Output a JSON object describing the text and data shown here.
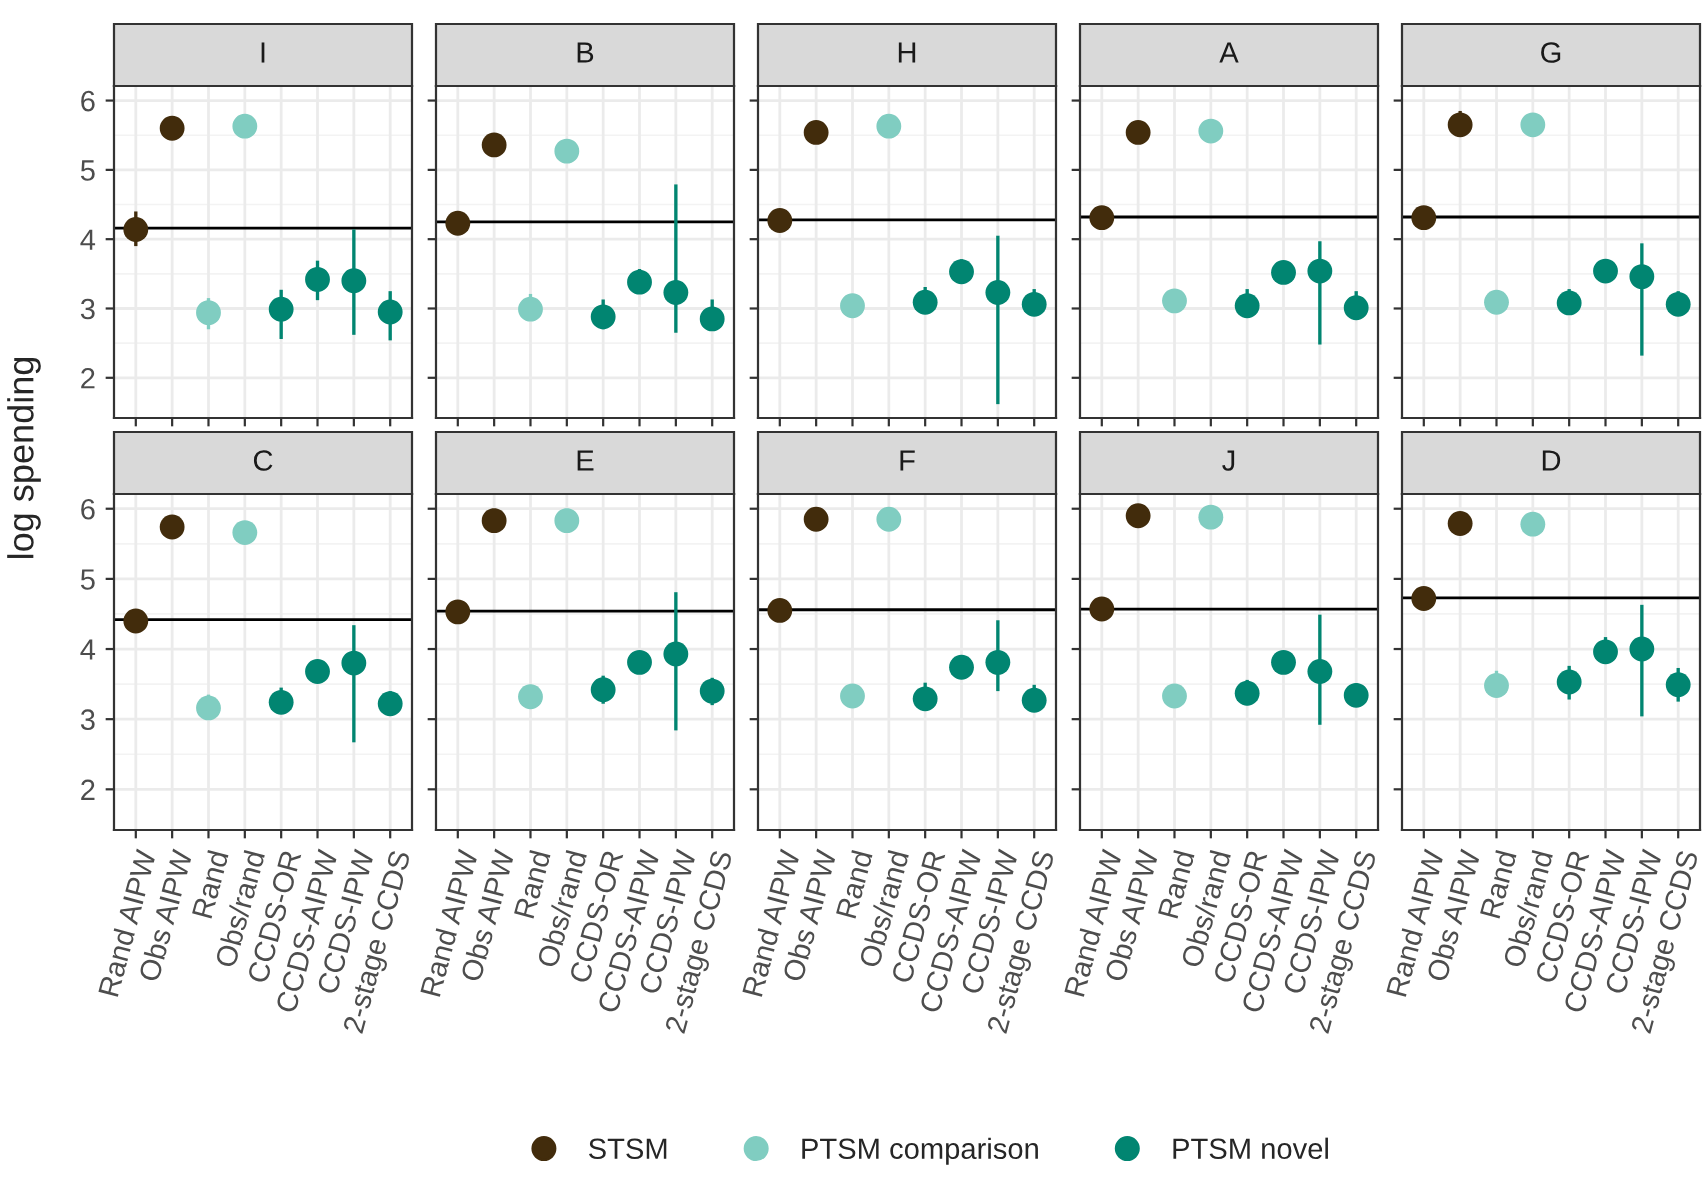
{
  "chart_data": [
    {
      "type": "scatter",
      "title": "I",
      "ylabel": "log spending",
      "categories": [
        "Rand AIPW",
        "Obs AIPW",
        "Rand",
        "Obs/rand",
        "CCDS-OR",
        "CCDS-AIPW",
        "CCDS-IPW",
        "2-stage CCDS"
      ],
      "ylim": [
        1.42,
        6.21
      ],
      "yticks": [
        2,
        3,
        4,
        5,
        6
      ],
      "grid": true,
      "marker": "circle",
      "tick_labels": "y",
      "legend": "bottom",
      "ref_lines": [
        {
          "axis": "y",
          "value": 4.16,
          "color": "#000000"
        }
      ],
      "series": [
        {
          "name": "STSM",
          "color": "#422c0c",
          "values": [
            4.14,
            5.6,
            null,
            null,
            null,
            null,
            null,
            null
          ],
          "errors": [
            [
              3.9,
              4.4
            ],
            null,
            null,
            null,
            null,
            null,
            null,
            null
          ]
        },
        {
          "name": "PTSM comparison",
          "color": "#80cdc1",
          "values": [
            null,
            null,
            2.94,
            5.63,
            null,
            null,
            null,
            null
          ],
          "errors": [
            null,
            null,
            [
              2.7,
              3.15
            ],
            null,
            null,
            null,
            null,
            null
          ]
        },
        {
          "name": "PTSM novel",
          "color": "#018571",
          "values": [
            null,
            null,
            null,
            null,
            2.99,
            3.42,
            3.4,
            2.95
          ],
          "errors": [
            null,
            null,
            null,
            null,
            [
              2.56,
              3.27
            ],
            [
              3.12,
              3.69
            ],
            [
              2.62,
              4.14
            ],
            [
              2.54,
              3.25
            ]
          ]
        }
      ]
    },
    {
      "type": "scatter",
      "title": "B",
      "categories": [
        "Rand AIPW",
        "Obs AIPW",
        "Rand",
        "Obs/rand",
        "CCDS-OR",
        "CCDS-AIPW",
        "CCDS-IPW",
        "2-stage CCDS"
      ],
      "ylim": [
        1.42,
        6.21
      ],
      "yticks": [
        2,
        3,
        4,
        5,
        6
      ],
      "grid": true,
      "marker": "circle",
      "tick_labels": false,
      "ref_lines": [
        {
          "axis": "y",
          "value": 4.25,
          "color": "#000000"
        }
      ],
      "series": [
        {
          "name": "STSM",
          "color": "#422c0c",
          "values": [
            4.23,
            5.36,
            null,
            null,
            null,
            null,
            null,
            null
          ]
        },
        {
          "name": "PTSM comparison",
          "color": "#80cdc1",
          "values": [
            null,
            null,
            2.99,
            5.27,
            null,
            null,
            null,
            null
          ],
          "errors": [
            null,
            null,
            [
              2.83,
              3.21
            ],
            null,
            null,
            null,
            null,
            null
          ]
        },
        {
          "name": "PTSM novel",
          "color": "#018571",
          "values": [
            null,
            null,
            null,
            null,
            2.88,
            3.38,
            3.23,
            2.85
          ],
          "errors": [
            null,
            null,
            null,
            null,
            [
              2.7,
              3.13
            ],
            [
              3.23,
              3.57
            ],
            [
              2.65,
              4.79
            ],
            [
              2.7,
              3.13
            ]
          ]
        }
      ]
    },
    {
      "type": "scatter",
      "title": "H",
      "categories": [
        "Rand AIPW",
        "Obs AIPW",
        "Rand",
        "Obs/rand",
        "CCDS-OR",
        "CCDS-AIPW",
        "CCDS-IPW",
        "2-stage CCDS"
      ],
      "ylim": [
        1.42,
        6.21
      ],
      "yticks": [
        2,
        3,
        4,
        5,
        6
      ],
      "grid": true,
      "marker": "circle",
      "tick_labels": false,
      "ref_lines": [
        {
          "axis": "y",
          "value": 4.28,
          "color": "#000000"
        }
      ],
      "series": [
        {
          "name": "STSM",
          "color": "#422c0c",
          "values": [
            4.27,
            5.54,
            null,
            null,
            null,
            null,
            null,
            null
          ]
        },
        {
          "name": "PTSM comparison",
          "color": "#80cdc1",
          "values": [
            null,
            null,
            3.04,
            5.63,
            null,
            null,
            null,
            null
          ],
          "errors": [
            null,
            null,
            [
              2.9,
              3.2
            ],
            null,
            null,
            null,
            null,
            null
          ]
        },
        {
          "name": "PTSM novel",
          "color": "#018571",
          "values": [
            null,
            null,
            null,
            null,
            3.09,
            3.53,
            3.23,
            3.06
          ],
          "errors": [
            null,
            null,
            null,
            null,
            [
              2.94,
              3.31
            ],
            [
              3.38,
              3.71
            ],
            [
              1.62,
              4.05
            ],
            [
              2.92,
              3.28
            ]
          ]
        }
      ]
    },
    {
      "type": "scatter",
      "title": "A",
      "categories": [
        "Rand AIPW",
        "Obs AIPW",
        "Rand",
        "Obs/rand",
        "CCDS-OR",
        "CCDS-AIPW",
        "CCDS-IPW",
        "2-stage CCDS"
      ],
      "ylim": [
        1.42,
        6.21
      ],
      "yticks": [
        2,
        3,
        4,
        5,
        6
      ],
      "grid": true,
      "marker": "circle",
      "tick_labels": false,
      "ref_lines": [
        {
          "axis": "y",
          "value": 4.32,
          "color": "#000000"
        }
      ],
      "series": [
        {
          "name": "STSM",
          "color": "#422c0c",
          "values": [
            4.31,
            5.54,
            null,
            null,
            null,
            null,
            null,
            null
          ]
        },
        {
          "name": "PTSM comparison",
          "color": "#80cdc1",
          "values": [
            null,
            null,
            3.11,
            5.56,
            null,
            null,
            null,
            null
          ]
        },
        {
          "name": "PTSM novel",
          "color": "#018571",
          "values": [
            null,
            null,
            null,
            null,
            3.04,
            3.52,
            3.54,
            3.01
          ],
          "errors": [
            null,
            null,
            null,
            null,
            [
              2.92,
              3.28
            ],
            null,
            [
              2.48,
              3.97
            ],
            [
              2.87,
              3.25
            ]
          ]
        }
      ]
    },
    {
      "type": "scatter",
      "title": "G",
      "categories": [
        "Rand AIPW",
        "Obs AIPW",
        "Rand",
        "Obs/rand",
        "CCDS-OR",
        "CCDS-AIPW",
        "CCDS-IPW",
        "2-stage CCDS"
      ],
      "ylim": [
        1.42,
        6.21
      ],
      "yticks": [
        2,
        3,
        4,
        5,
        6
      ],
      "grid": true,
      "marker": "circle",
      "tick_labels": false,
      "ref_lines": [
        {
          "axis": "y",
          "value": 4.32,
          "color": "#000000"
        }
      ],
      "series": [
        {
          "name": "STSM",
          "color": "#422c0c",
          "values": [
            4.31,
            5.65,
            null,
            null,
            null,
            null,
            null,
            null
          ],
          "errors": [
            null,
            [
              5.52,
              5.85
            ],
            null,
            null,
            null,
            null,
            null,
            null
          ]
        },
        {
          "name": "PTSM comparison",
          "color": "#80cdc1",
          "values": [
            null,
            null,
            3.09,
            5.65,
            null,
            null,
            null,
            null
          ]
        },
        {
          "name": "PTSM novel",
          "color": "#018571",
          "values": [
            null,
            null,
            null,
            null,
            3.08,
            3.54,
            3.46,
            3.06
          ],
          "errors": [
            null,
            null,
            null,
            null,
            [
              2.94,
              3.28
            ],
            null,
            [
              2.32,
              3.94
            ],
            [
              2.92,
              3.25
            ]
          ]
        }
      ]
    },
    {
      "type": "scatter",
      "title": "C",
      "categories": [
        "Rand AIPW",
        "Obs AIPW",
        "Rand",
        "Obs/rand",
        "CCDS-OR",
        "CCDS-AIPW",
        "CCDS-IPW",
        "2-stage CCDS"
      ],
      "ylim": [
        1.42,
        6.21
      ],
      "yticks": [
        2,
        3,
        4,
        5,
        6
      ],
      "grid": true,
      "marker": "circle",
      "ref_lines": [
        {
          "axis": "y",
          "value": 4.42,
          "color": "#000000"
        }
      ],
      "series": [
        {
          "name": "STSM",
          "color": "#422c0c",
          "values": [
            4.4,
            5.74,
            null,
            null,
            null,
            null,
            null,
            null
          ]
        },
        {
          "name": "PTSM comparison",
          "color": "#80cdc1",
          "values": [
            null,
            null,
            3.16,
            5.66,
            null,
            null,
            null,
            null
          ],
          "errors": [
            null,
            null,
            [
              3.01,
              3.35
            ],
            null,
            null,
            null,
            null,
            null
          ]
        },
        {
          "name": "PTSM novel",
          "color": "#018571",
          "values": [
            null,
            null,
            null,
            null,
            3.24,
            3.68,
            3.8,
            3.22
          ],
          "errors": [
            null,
            null,
            null,
            null,
            [
              3.09,
              3.45
            ],
            [
              3.54,
              3.8
            ],
            [
              2.67,
              4.34
            ],
            [
              3.09,
              3.4
            ]
          ]
        }
      ]
    },
    {
      "type": "scatter",
      "title": "E",
      "categories": [
        "Rand AIPW",
        "Obs AIPW",
        "Rand",
        "Obs/rand",
        "CCDS-OR",
        "CCDS-AIPW",
        "CCDS-IPW",
        "2-stage CCDS"
      ],
      "ylim": [
        1.42,
        6.21
      ],
      "yticks": [
        2,
        3,
        4,
        5,
        6
      ],
      "grid": true,
      "marker": "circle",
      "tick_labels": "x",
      "ref_lines": [
        {
          "axis": "y",
          "value": 4.54,
          "color": "#000000"
        }
      ],
      "series": [
        {
          "name": "STSM",
          "color": "#422c0c",
          "values": [
            4.53,
            5.83,
            null,
            null,
            null,
            null,
            null,
            null
          ]
        },
        {
          "name": "PTSM comparison",
          "color": "#80cdc1",
          "values": [
            null,
            null,
            3.32,
            5.83,
            null,
            null,
            null,
            null
          ],
          "errors": [
            null,
            null,
            [
              3.19,
              3.49
            ],
            null,
            null,
            null,
            null,
            null
          ]
        },
        {
          "name": "PTSM novel",
          "color": "#018571",
          "values": [
            null,
            null,
            null,
            null,
            3.42,
            3.81,
            3.93,
            3.4
          ],
          "errors": [
            null,
            null,
            null,
            null,
            [
              3.22,
              3.62
            ],
            null,
            [
              2.84,
              4.81
            ],
            [
              3.2,
              3.59
            ]
          ]
        }
      ]
    },
    {
      "type": "scatter",
      "title": "F",
      "categories": [
        "Rand AIPW",
        "Obs AIPW",
        "Rand",
        "Obs/rand",
        "CCDS-OR",
        "CCDS-AIPW",
        "CCDS-IPW",
        "2-stage CCDS"
      ],
      "ylim": [
        1.42,
        6.21
      ],
      "yticks": [
        2,
        3,
        4,
        5,
        6
      ],
      "grid": true,
      "marker": "circle",
      "tick_labels": "x",
      "ref_lines": [
        {
          "axis": "y",
          "value": 4.56,
          "color": "#000000"
        }
      ],
      "series": [
        {
          "name": "STSM",
          "color": "#422c0c",
          "values": [
            4.55,
            5.85,
            null,
            null,
            null,
            null,
            null,
            null
          ]
        },
        {
          "name": "PTSM comparison",
          "color": "#80cdc1",
          "values": [
            null,
            null,
            3.33,
            5.85,
            null,
            null,
            null,
            null
          ]
        },
        {
          "name": "PTSM novel",
          "color": "#018571",
          "values": [
            null,
            null,
            null,
            null,
            3.29,
            3.74,
            3.81,
            3.27
          ],
          "errors": [
            null,
            null,
            null,
            null,
            [
              3.14,
              3.52
            ],
            null,
            [
              3.4,
              4.41
            ],
            [
              3.13,
              3.49
            ]
          ]
        }
      ]
    },
    {
      "type": "scatter",
      "title": "J",
      "categories": [
        "Rand AIPW",
        "Obs AIPW",
        "Rand",
        "Obs/rand",
        "CCDS-OR",
        "CCDS-AIPW",
        "CCDS-IPW",
        "2-stage CCDS"
      ],
      "ylim": [
        1.42,
        6.21
      ],
      "yticks": [
        2,
        3,
        4,
        5,
        6
      ],
      "grid": true,
      "marker": "circle",
      "tick_labels": "x",
      "ref_lines": [
        {
          "axis": "y",
          "value": 4.57,
          "color": "#000000"
        }
      ],
      "series": [
        {
          "name": "STSM",
          "color": "#422c0c",
          "values": [
            4.57,
            5.9,
            null,
            null,
            null,
            null,
            null,
            null
          ]
        },
        {
          "name": "PTSM comparison",
          "color": "#80cdc1",
          "values": [
            null,
            null,
            3.33,
            5.88,
            null,
            null,
            null,
            null
          ]
        },
        {
          "name": "PTSM novel",
          "color": "#018571",
          "values": [
            null,
            null,
            null,
            null,
            3.37,
            3.81,
            3.68,
            3.34
          ],
          "errors": [
            null,
            null,
            null,
            null,
            [
              3.2,
              3.56
            ],
            null,
            [
              2.92,
              4.49
            ],
            [
              3.19,
              3.51
            ]
          ]
        }
      ]
    },
    {
      "type": "scatter",
      "title": "D",
      "categories": [
        "Rand AIPW",
        "Obs AIPW",
        "Rand",
        "Obs/rand",
        "CCDS-OR",
        "CCDS-AIPW",
        "CCDS-IPW",
        "2-stage CCDS"
      ],
      "ylim": [
        1.42,
        6.21
      ],
      "yticks": [
        2,
        3,
        4,
        5,
        6
      ],
      "grid": true,
      "marker": "circle",
      "tick_labels": "x",
      "ref_lines": [
        {
          "axis": "y",
          "value": 4.73,
          "color": "#000000"
        }
      ],
      "series": [
        {
          "name": "STSM",
          "color": "#422c0c",
          "values": [
            4.72,
            5.79,
            null,
            null,
            null,
            null,
            null,
            null
          ],
          "errors": [
            [
              4.57,
              4.84
            ],
            null,
            null,
            null,
            null,
            null,
            null,
            null
          ]
        },
        {
          "name": "PTSM comparison",
          "color": "#80cdc1",
          "values": [
            null,
            null,
            3.48,
            5.78,
            null,
            null,
            null,
            null
          ],
          "errors": [
            null,
            null,
            [
              3.32,
              3.69
            ],
            null,
            null,
            null,
            null,
            null
          ]
        },
        {
          "name": "PTSM novel",
          "color": "#018571",
          "values": [
            null,
            null,
            null,
            null,
            3.53,
            3.96,
            4.0,
            3.49
          ],
          "errors": [
            null,
            null,
            null,
            null,
            [
              3.28,
              3.76
            ],
            [
              3.8,
              4.17
            ],
            [
              3.04,
              4.63
            ],
            [
              3.25,
              3.73
            ]
          ]
        }
      ]
    }
  ]
}
